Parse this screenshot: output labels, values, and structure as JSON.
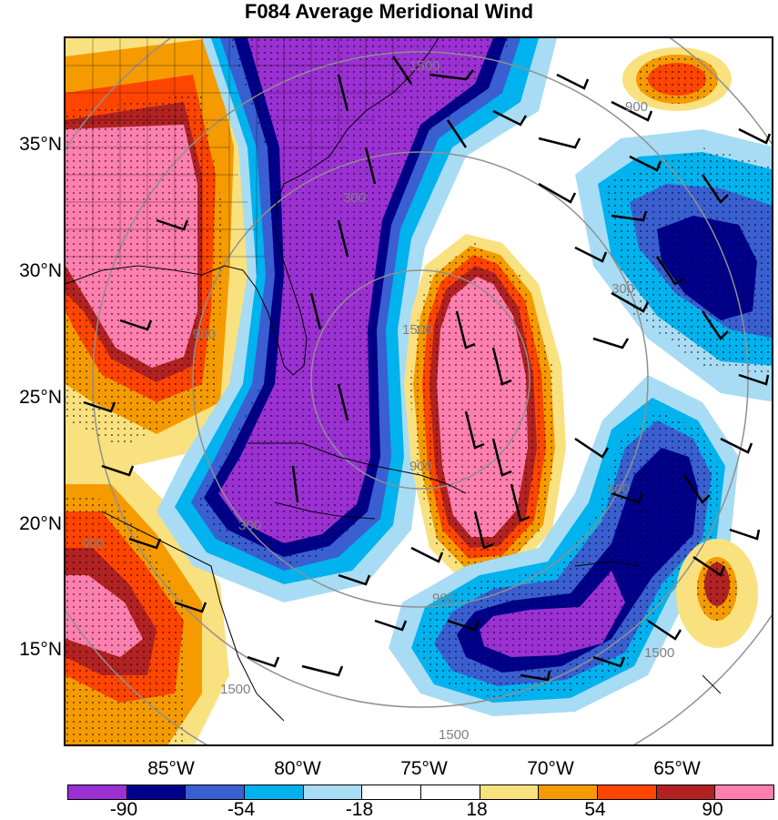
{
  "title": "F084 Average Meridional Wind",
  "lat_labels": [
    "35°N",
    "30°N",
    "25°N",
    "20°N",
    "15°N"
  ],
  "lon_labels": [
    "85°W",
    "80°W",
    "75°W",
    "70°W",
    "65°W"
  ],
  "colorbar": {
    "labels": [
      "-90",
      "-54",
      "-18",
      "18",
      "54",
      "90"
    ],
    "colors": [
      "#9b30d3",
      "#00008b",
      "#3a5fd0",
      "#00b2ee",
      "#a8dcf4",
      "#ffffff",
      "#ffffff",
      "#fae17f",
      "#f59b00",
      "#ff4500",
      "#b22222",
      "#ff7fae"
    ]
  },
  "contour_labels": [
    "1500",
    "900",
    "300",
    "300",
    "900",
    "1500",
    "900",
    "300",
    "300",
    "900",
    "1500",
    "1500",
    "1500",
    "900",
    "900",
    "900",
    "1500"
  ]
}
